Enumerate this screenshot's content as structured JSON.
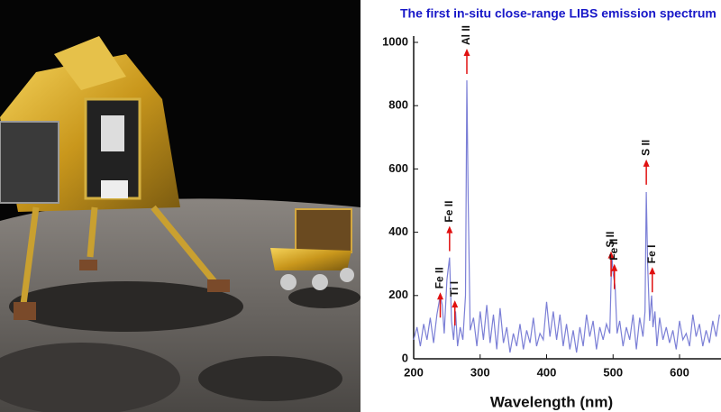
{
  "chart_data": {
    "type": "line",
    "title": "The first in-situ close-range LIBS emission spectrum",
    "x_label": "Wavelength (nm)",
    "x": [
      200,
      205,
      210,
      215,
      220,
      225,
      230,
      235,
      240,
      243,
      246,
      250,
      254,
      257,
      260,
      263,
      266,
      270,
      274,
      278,
      280,
      282,
      285,
      290,
      295,
      300,
      305,
      310,
      315,
      320,
      325,
      330,
      335,
      340,
      345,
      350,
      355,
      360,
      365,
      370,
      375,
      380,
      385,
      390,
      395,
      400,
      405,
      410,
      415,
      420,
      425,
      430,
      435,
      440,
      445,
      450,
      455,
      460,
      465,
      470,
      475,
      480,
      485,
      490,
      495,
      498,
      500,
      503,
      506,
      510,
      515,
      520,
      525,
      530,
      535,
      540,
      545,
      548,
      550,
      552,
      555,
      558,
      560,
      563,
      566,
      570,
      575,
      580,
      585,
      590,
      595,
      600,
      605,
      610,
      615,
      620,
      625,
      630,
      635,
      640,
      645,
      650,
      655,
      660
    ],
    "series": [
      {
        "color": "#7b7fd6",
        "values": [
          60,
          100,
          40,
          110,
          60,
          130,
          50,
          140,
          200,
          170,
          80,
          250,
          320,
          120,
          60,
          150,
          40,
          100,
          60,
          200,
          880,
          500,
          90,
          130,
          40,
          150,
          60,
          170,
          50,
          140,
          30,
          160,
          50,
          100,
          20,
          80,
          40,
          110,
          30,
          90,
          50,
          130,
          40,
          80,
          60,
          180,
          70,
          150,
          60,
          140,
          40,
          110,
          30,
          90,
          20,
          100,
          40,
          140,
          70,
          120,
          30,
          100,
          60,
          110,
          80,
          330,
          270,
          230,
          80,
          120,
          40,
          100,
          60,
          140,
          30,
          130,
          70,
          150,
          527,
          300,
          120,
          200,
          100,
          150,
          40,
          130,
          60,
          100,
          50,
          90,
          30,
          120,
          60,
          80,
          40,
          140,
          70,
          110,
          40,
          90,
          50,
          120,
          70,
          140
        ]
      }
    ],
    "xlim": [
      200,
      661
    ],
    "ylim": [
      0,
      1000
    ],
    "xticks": [
      200,
      300,
      400,
      500,
      600
    ],
    "yticks": [
      0,
      200,
      400,
      600,
      800,
      1000
    ],
    "annotations": [
      {
        "text": "Fe II",
        "x": 240,
        "y": 210
      },
      {
        "text": "Fe II",
        "x": 254,
        "y": 420
      },
      {
        "text": "Ti I",
        "x": 262,
        "y": 185
      },
      {
        "text": "Al II",
        "x": 280,
        "y": 980
      },
      {
        "text": "S II",
        "x": 497,
        "y": 340
      },
      {
        "text": "Fe II",
        "x": 502,
        "y": 300
      },
      {
        "text": "S II",
        "x": 550,
        "y": 630
      },
      {
        "text": "Fe I",
        "x": 559,
        "y": 290
      }
    ]
  }
}
